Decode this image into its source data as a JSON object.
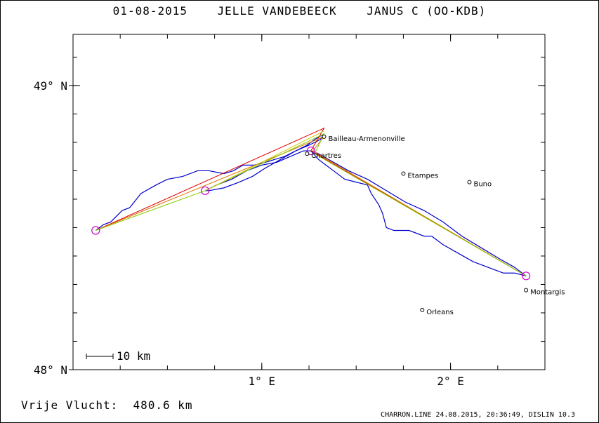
{
  "header": {
    "date": "01-08-2015",
    "pilot": "JELLE VANDEBEECK",
    "glider": "JANUS C (OO-KDB)"
  },
  "footer": {
    "distance_label": "Vrije Vlucht:",
    "distance_value": "480.6 km",
    "credit": "CHARRON.LINE 24.08.2015, 20:36:49, DISLIN 10.3"
  },
  "colors": {
    "track": "#0000cc",
    "frame": "#000000",
    "turnpoint": "#cc00cc",
    "leg_red": "#dd0000",
    "leg_orange": "#e07000",
    "leg_green": "#88cc00",
    "leg_yellow": "#cccc00"
  },
  "chart_data": {
    "type": "map",
    "xlim": [
      0.0,
      2.5
    ],
    "ylim": [
      48.0,
      49.18
    ],
    "x_ticks": [
      {
        "value": 1.0,
        "label": "1° E"
      },
      {
        "value": 2.0,
        "label": "2° E"
      }
    ],
    "y_ticks": [
      {
        "value": 49.0,
        "label": "49° N"
      },
      {
        "value": 48.0,
        "label": "48° N"
      }
    ],
    "scale_bar": "10 km",
    "towns": [
      {
        "name": "Bailleau-Armenonville",
        "lon": 1.33,
        "lat": 48.82
      },
      {
        "name": "Chartres",
        "lon": 1.24,
        "lat": 48.76
      },
      {
        "name": "Etampes",
        "lon": 1.75,
        "lat": 48.69
      },
      {
        "name": "Buno",
        "lon": 2.1,
        "lat": 48.66
      },
      {
        "name": "Montargis",
        "lon": 2.4,
        "lat": 48.28
      },
      {
        "name": "Orleans",
        "lon": 1.85,
        "lat": 48.21
      }
    ],
    "turnpoints": [
      {
        "lon": 0.12,
        "lat": 48.49
      },
      {
        "lon": 0.7,
        "lat": 48.63
      },
      {
        "lon": 1.26,
        "lat": 48.77
      },
      {
        "lon": 2.4,
        "lat": 48.33
      }
    ],
    "track": [
      [
        0.12,
        48.49
      ],
      [
        0.16,
        48.51
      ],
      [
        0.2,
        48.52
      ],
      [
        0.26,
        48.56
      ],
      [
        0.3,
        48.57
      ],
      [
        0.36,
        48.62
      ],
      [
        0.44,
        48.65
      ],
      [
        0.5,
        48.67
      ],
      [
        0.58,
        48.68
      ],
      [
        0.66,
        48.7
      ],
      [
        0.72,
        48.7
      ],
      [
        0.8,
        48.69
      ],
      [
        0.85,
        48.7
      ],
      [
        0.9,
        48.72
      ],
      [
        0.96,
        48.72
      ],
      [
        1.02,
        48.73
      ],
      [
        1.07,
        48.74
      ],
      [
        1.12,
        48.75
      ],
      [
        1.18,
        48.77
      ],
      [
        1.24,
        48.79
      ],
      [
        1.28,
        48.81
      ],
      [
        1.33,
        48.83
      ],
      [
        1.31,
        48.81
      ],
      [
        1.25,
        48.79
      ],
      [
        1.18,
        48.77
      ],
      [
        1.1,
        48.74
      ],
      [
        1.02,
        48.71
      ],
      [
        0.95,
        48.68
      ],
      [
        0.88,
        48.66
      ],
      [
        0.8,
        48.64
      ],
      [
        0.72,
        48.63
      ],
      [
        0.7,
        48.63
      ],
      [
        0.76,
        48.65
      ],
      [
        0.84,
        48.67
      ],
      [
        0.92,
        48.7
      ],
      [
        1.0,
        48.72
      ],
      [
        1.08,
        48.73
      ],
      [
        1.15,
        48.75
      ],
      [
        1.22,
        48.77
      ],
      [
        1.26,
        48.77
      ],
      [
        1.3,
        48.74
      ],
      [
        1.34,
        48.72
      ],
      [
        1.38,
        48.7
      ],
      [
        1.44,
        48.67
      ],
      [
        1.5,
        48.66
      ],
      [
        1.56,
        48.65
      ],
      [
        1.58,
        48.62
      ],
      [
        1.62,
        48.58
      ],
      [
        1.64,
        48.55
      ],
      [
        1.66,
        48.5
      ],
      [
        1.7,
        48.49
      ],
      [
        1.78,
        48.49
      ],
      [
        1.86,
        48.47
      ],
      [
        1.9,
        48.47
      ],
      [
        1.96,
        48.44
      ],
      [
        2.04,
        48.41
      ],
      [
        2.12,
        48.38
      ],
      [
        2.2,
        48.36
      ],
      [
        2.28,
        48.34
      ],
      [
        2.34,
        48.34
      ],
      [
        2.4,
        48.33
      ],
      [
        2.34,
        48.36
      ],
      [
        2.26,
        48.39
      ],
      [
        2.16,
        48.43
      ],
      [
        2.06,
        48.47
      ],
      [
        1.96,
        48.52
      ],
      [
        1.86,
        48.56
      ],
      [
        1.76,
        48.59
      ],
      [
        1.66,
        48.63
      ],
      [
        1.56,
        48.67
      ],
      [
        1.46,
        48.7
      ],
      [
        1.38,
        48.73
      ],
      [
        1.3,
        48.76
      ],
      [
        1.26,
        48.77
      ]
    ],
    "legs": [
      {
        "color": "red",
        "points": [
          [
            0.12,
            48.49
          ],
          [
            1.33,
            48.85
          ],
          [
            1.26,
            48.77
          ],
          [
            2.4,
            48.33
          ]
        ]
      },
      {
        "color": "orange",
        "points": [
          [
            0.12,
            48.49
          ],
          [
            1.33,
            48.82
          ],
          [
            1.27,
            48.77
          ],
          [
            2.4,
            48.33
          ]
        ]
      },
      {
        "color": "green",
        "points": [
          [
            0.12,
            48.49
          ],
          [
            0.7,
            48.63
          ],
          [
            1.33,
            48.83
          ],
          [
            1.28,
            48.76
          ],
          [
            2.4,
            48.33
          ]
        ]
      },
      {
        "color": "yellow",
        "points": [
          [
            0.7,
            48.63
          ],
          [
            1.33,
            48.84
          ]
        ]
      }
    ]
  }
}
